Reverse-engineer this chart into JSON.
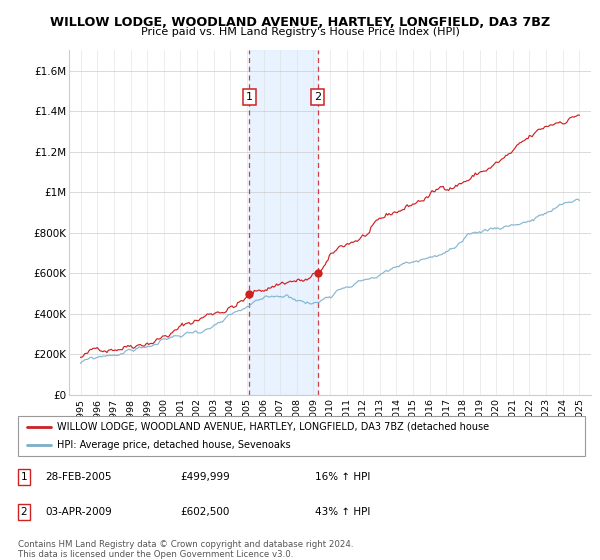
{
  "title": "WILLOW LODGE, WOODLAND AVENUE, HARTLEY, LONGFIELD, DA3 7BZ",
  "subtitle": "Price paid vs. HM Land Registry's House Price Index (HPI)",
  "ylabel_ticks": [
    "£0",
    "£200K",
    "£400K",
    "£600K",
    "£800K",
    "£1M",
    "£1.2M",
    "£1.4M",
    "£1.6M"
  ],
  "ytick_values": [
    0,
    200000,
    400000,
    600000,
    800000,
    1000000,
    1200000,
    1400000,
    1600000
  ],
  "ylim": [
    0,
    1700000
  ],
  "x_start_year": 1995,
  "x_end_year": 2025,
  "sale1_x": 2005.15,
  "sale1_price": 499999,
  "sale2_x": 2009.25,
  "sale2_price": 602500,
  "legend_line1": "WILLOW LODGE, WOODLAND AVENUE, HARTLEY, LONGFIELD, DA3 7BZ (detached house",
  "legend_line2": "HPI: Average price, detached house, Sevenoaks",
  "table_row1": [
    "1",
    "28-FEB-2005",
    "£499,999",
    "16% ↑ HPI"
  ],
  "table_row2": [
    "2",
    "03-APR-2009",
    "£602,500",
    "43% ↑ HPI"
  ],
  "footnote": "Contains HM Land Registry data © Crown copyright and database right 2024.\nThis data is licensed under the Open Government Licence v3.0.",
  "hpi_color": "#7aaecc",
  "price_color": "#cc2222",
  "shade_color": "#ddeeff",
  "vline_color": "#cc2222",
  "label_box_color": "#cc2222"
}
